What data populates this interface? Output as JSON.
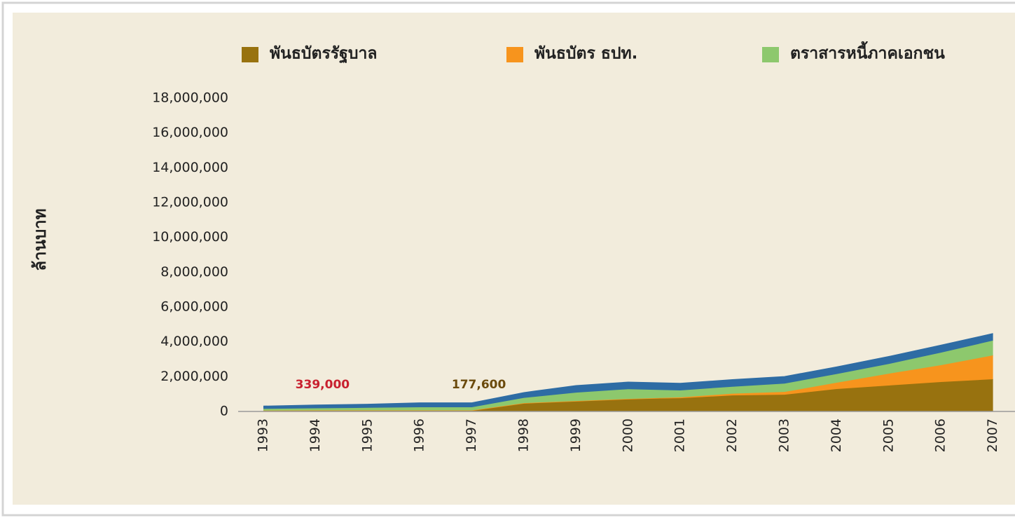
{
  "chart_data": {
    "type": "stacked_area",
    "y_label": "ล้านบาท",
    "categories": [
      "1993",
      "1994",
      "1995",
      "1996",
      "1997",
      "1998",
      "1999",
      "2000",
      "2001",
      "2002",
      "2003",
      "2004",
      "2005",
      "2006",
      "2007"
    ],
    "series": [
      {
        "name": "พันธบัตรรัฐบาล",
        "color": "#98720f",
        "values": [
          50000,
          60000,
          60000,
          60000,
          60000,
          480000,
          600000,
          720000,
          760000,
          920000,
          960000,
          1290000,
          1490000,
          1690000,
          1850000
        ]
      },
      {
        "name": "พันธบัตร ธปท.",
        "color": "#f7941d",
        "values": [
          0,
          0,
          0,
          0,
          0,
          0,
          0,
          0,
          50000,
          100000,
          160000,
          360000,
          680000,
          970000,
          1370000
        ]
      },
      {
        "name": "ตราสารหนี้ภาคเอกชน",
        "color": "#8dc86d",
        "values": [
          100000,
          120000,
          150000,
          180000,
          180000,
          300000,
          480000,
          560000,
          400000,
          400000,
          480000,
          500000,
          560000,
          720000,
          850000
        ]
      },
      {
        "color": "#2e6ca4",
        "values": [
          150000,
          180000,
          200000,
          250000,
          250000,
          300000,
          400000,
          400000,
          400000,
          400000,
          400000,
          400000,
          420000,
          420000,
          400000
        ]
      }
    ],
    "annotations": [
      {
        "text": "339,000",
        "category": 1,
        "color": "#c8202f"
      },
      {
        "text": "177,600",
        "category": 4,
        "color": "#6b4a0c"
      }
    ],
    "ylim": [
      0,
      18000000
    ],
    "yticks": [
      0,
      {
        "value": 2000000,
        "label": "2,000,000"
      },
      {
        "value": 4000000,
        "label": "4,000,000"
      },
      {
        "value": 6000000,
        "label": "6,000,000"
      },
      {
        "value": 8000000,
        "label": "8,000,000"
      },
      {
        "value": 10000000,
        "label": "10,000,000"
      },
      {
        "value": 12000000,
        "label": "12,000,000"
      },
      {
        "value": 14000000,
        "label": "14,000,000"
      },
      {
        "value": 16000000,
        "label": "16,000,000"
      },
      {
        "value": 18000000,
        "label": "18,000,000"
      }
    ]
  }
}
